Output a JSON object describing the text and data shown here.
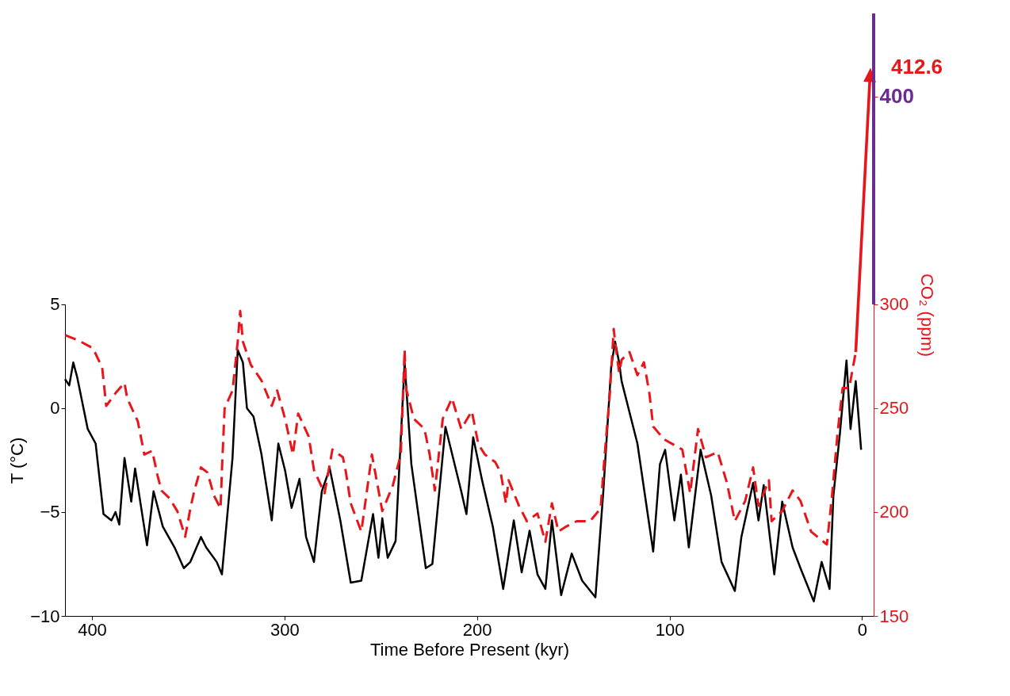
{
  "chart_data": {
    "type": "line",
    "xlabel": "Time Before Present (kyr)",
    "ylabel": "T (°C)",
    "y2label": "CO₂ (ppm)",
    "xlim": [
      414,
      -6
    ],
    "xticks": [
      400,
      300,
      200,
      100,
      0
    ],
    "ylim": [
      -10,
      5
    ],
    "yticks": [
      -10,
      -5,
      0,
      5
    ],
    "y2lim": [
      150,
      440
    ],
    "y2ticks": [
      150,
      200,
      250,
      300,
      400
    ],
    "grid": false,
    "marker": "none",
    "annotations": [
      "412.6"
    ],
    "series": [
      {
        "color": "#000000",
        "line_style": "solid",
        "x": [
          414,
          411.8,
          409.7,
          407.7,
          402.2,
          398.1,
          394,
          389.9,
          387.8,
          385.8,
          383.1,
          379.6,
          377.6,
          371.4,
          368,
          363.2,
          357.1,
          352.3,
          348.9,
          343.4,
          340.7,
          335.2,
          332.5,
          327,
          324.3,
          321.6,
          319.5,
          316.1,
          312,
          306.6,
          303.2,
          299.7,
          296.3,
          292.2,
          288.8,
          284.7,
          280.6,
          276.5,
          271,
          265.6,
          260.1,
          254,
          251.2,
          249.2,
          246.4,
          242.3,
          237.6,
          234.1,
          226.6,
          223.2,
          216.4,
          208.2,
          205.5,
          202,
          197.3,
          191.8,
          186.4,
          180.9,
          176.8,
          172.7,
          168.6,
          164.5,
          161.1,
          156.3,
          150.8,
          145.4,
          138.5,
          134.4,
          130.3,
          128.3,
          126.2,
          124.9,
          116.7,
          108.5,
          105,
          102.3,
          97.5,
          94.1,
          90,
          83.9,
          78.4,
          73,
          66.1,
          62.7,
          56.6,
          53.8,
          51.1,
          45.6,
          41.5,
          36.1,
          32,
          25.1,
          21,
          16.9,
          14.9,
          11.5,
          8.1,
          6,
          3.3,
          0.5
        ],
        "values": [
          1.4,
          1.1,
          2.2,
          1.5,
          -1.0,
          -1.7,
          -5.1,
          -5.4,
          -5.0,
          -5.6,
          -2.4,
          -4.5,
          -2.9,
          -6.6,
          -4.0,
          -5.7,
          -6.7,
          -7.7,
          -7.4,
          -6.2,
          -6.7,
          -7.4,
          -8.0,
          -2.4,
          2.8,
          2.2,
          0.0,
          -0.4,
          -2.2,
          -5.4,
          -1.7,
          -3.0,
          -4.8,
          -3.4,
          -6.2,
          -7.4,
          -4.0,
          -2.9,
          -5.4,
          -8.4,
          -8.3,
          -5.1,
          -7.2,
          -5.3,
          -7.2,
          -6.4,
          2.2,
          -2.7,
          -7.7,
          -7.5,
          -0.9,
          -4.0,
          -5.1,
          -1.4,
          -3.5,
          -5.7,
          -8.7,
          -5.4,
          -7.9,
          -5.9,
          -8.0,
          -8.7,
          -5.4,
          -9.0,
          -7.0,
          -8.3,
          -9.1,
          -4.0,
          2.0,
          3.2,
          2.2,
          1.3,
          -1.7,
          -6.9,
          -2.7,
          -2.0,
          -5.4,
          -3.2,
          -6.7,
          -2.0,
          -4.2,
          -7.4,
          -8.8,
          -6.2,
          -3.6,
          -5.4,
          -3.7,
          -8.0,
          -4.5,
          -6.7,
          -7.7,
          -9.3,
          -7.4,
          -8.7,
          -4.2,
          -1.2,
          2.3,
          -1.0,
          1.3,
          -2.0
        ]
      },
      {
        "color": "#e8161b",
        "line_style": "dashed",
        "axis": "y2",
        "x": [
          413.8,
          407,
          399.5,
          394.7,
          392.6,
          387.2,
          383.1,
          381.7,
          376.2,
          372.8,
          368.7,
          366,
          363.9,
          359.8,
          355.7,
          351.6,
          348.9,
          346.8,
          343.4,
          340,
          336.6,
          333.2,
          332.5,
          331.1,
          327,
          324.3,
          323,
          321.6,
          317.5,
          312,
          306.6,
          303.8,
          299.7,
          295.6,
          292.9,
          287.4,
          284.7,
          279.2,
          275.1,
          269.7,
          268.3,
          265.6,
          260.1,
          254.6,
          249.2,
          243.7,
          239.6,
          237.6,
          236.9,
          232.8,
          227.3,
          224.6,
          221.9,
          217.8,
          213,
          208.2,
          202.7,
          199.3,
          195.9,
          190.5,
          187.7,
          185,
          183.6,
          178.2,
          174.1,
          168.6,
          164.5,
          161.1,
          157.7,
          153.6,
          148.2,
          141.3,
          135.8,
          133.8,
          131,
          129,
          128.3,
          126.2,
          124.9,
          120.8,
          116.7,
          113.3,
          110.5,
          108.5,
          103,
          93.4,
          89.3,
          85.2,
          81.1,
          75,
          70.2,
          66.1,
          60.7,
          56.6,
          53.8,
          48.4,
          47,
          41.5,
          36.1,
          32,
          26.5,
          18.3,
          15.6,
          12.8,
          10.1,
          6.7,
          3.3
        ],
        "values": [
          285.1,
          282.6,
          278.9,
          269.6,
          251.1,
          257.9,
          262.2,
          254.8,
          243.7,
          227.7,
          229.5,
          217.8,
          210.4,
          206.7,
          200.5,
          188.1,
          201.7,
          210.4,
          221.5,
          219,
          207.9,
          201.7,
          220.3,
          249.9,
          258.5,
          282,
          296.8,
          282,
          270.9,
          263.4,
          251.1,
          258.5,
          244.9,
          227.7,
          247.4,
          236.3,
          220.3,
          209.1,
          230.1,
          226.4,
          220.3,
          204.2,
          190.6,
          227.7,
          200.5,
          212.9,
          227.7,
          278.3,
          259.7,
          244.9,
          240,
          227.7,
          210.4,
          244.9,
          254.8,
          240,
          248.6,
          232.6,
          227.7,
          224,
          219,
          204.2,
          215.3,
          203,
          195.6,
          199.3,
          185.7,
          204.2,
          190.6,
          193.1,
          195.6,
          195.6,
          201.7,
          226.4,
          257.3,
          288.1,
          282,
          267.1,
          273.3,
          277,
          265.9,
          272.1,
          257.3,
          241.2,
          235.1,
          230.1,
          209.1,
          240,
          226.4,
          228.9,
          214.1,
          195.6,
          205.4,
          221.5,
          203,
          215.3,
          195.6,
          200.5,
          210.4,
          205.4,
          190.6,
          184.4,
          207.9,
          237.5,
          259.7,
          259.7,
          277
        ]
      }
    ]
  }
}
